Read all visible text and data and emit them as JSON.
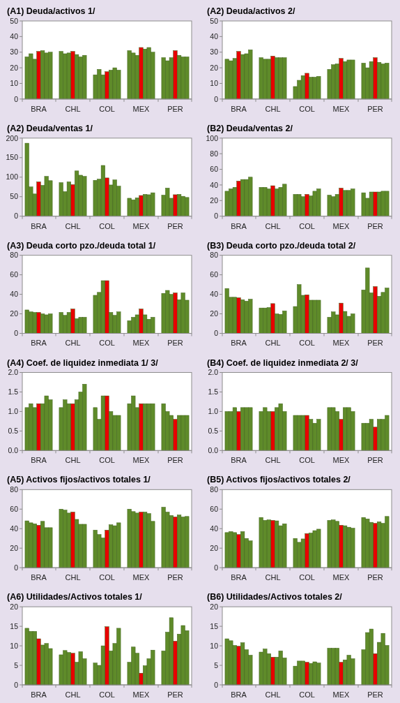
{
  "chart_data": [
    {
      "type": "bar",
      "title": "(A1) Deuda/activos  1/",
      "categories": [
        "BRA",
        "CHL",
        "COL",
        "MEX",
        "PER"
      ],
      "ylim": [
        0,
        50
      ],
      "yticks": [
        0,
        10,
        20,
        30,
        40,
        50
      ],
      "series": [
        {
          "color": "#5f8b2a",
          "values": [
            27,
            30.5,
            15.5,
            31,
            26.5
          ]
        },
        {
          "color": "#5f8b2a",
          "values": [
            29,
            29,
            19,
            29.5,
            24.5
          ]
        },
        {
          "color": "#5f8b2a",
          "values": [
            25.5,
            29.5,
            15.5,
            28,
            26.5
          ]
        },
        {
          "color": "#e80000",
          "values": [
            30.5,
            30.5,
            17.5,
            33,
            31
          ]
        },
        {
          "color": "#5f8b2a",
          "values": [
            31,
            28.5,
            18.5,
            32,
            28
          ]
        },
        {
          "color": "#5f8b2a",
          "values": [
            29.5,
            27,
            20,
            33,
            27
          ]
        },
        {
          "color": "#5f8b2a",
          "values": [
            30,
            28,
            18.5,
            30,
            27
          ]
        }
      ]
    },
    {
      "type": "bar",
      "title": "(A2) Deuda/activos  2/",
      "categories": [
        "BRA",
        "CHL",
        "COL",
        "MEX",
        "PER"
      ],
      "ylim": [
        0,
        50
      ],
      "yticks": [
        0,
        10,
        20,
        30,
        40,
        50
      ],
      "series": [
        {
          "color": "#5f8b2a",
          "values": [
            25.5,
            26.5,
            8,
            19,
            23
          ]
        },
        {
          "color": "#5f8b2a",
          "values": [
            24.5,
            25.5,
            12,
            22,
            20
          ]
        },
        {
          "color": "#5f8b2a",
          "values": [
            26,
            25.5,
            15,
            22.5,
            24
          ]
        },
        {
          "color": "#e80000",
          "values": [
            30.5,
            27.5,
            16.5,
            26,
            26.5
          ]
        },
        {
          "color": "#5f8b2a",
          "values": [
            28.5,
            26.5,
            14,
            24,
            23.5
          ]
        },
        {
          "color": "#5f8b2a",
          "values": [
            29,
            26.5,
            14,
            25,
            22.5
          ]
        },
        {
          "color": "#5f8b2a",
          "values": [
            31.5,
            26.5,
            14.5,
            25,
            23
          ]
        }
      ]
    },
    {
      "type": "bar",
      "title": "(A2) Deuda/ventas  1/",
      "categories": [
        "BRA",
        "CHL",
        "COL",
        "MEX",
        "PER"
      ],
      "ylim": [
        0,
        200
      ],
      "yticks": [
        0,
        50,
        100,
        150,
        200
      ],
      "series": [
        {
          "color": "#5f8b2a",
          "values": [
            187,
            86,
            92,
            46,
            54
          ]
        },
        {
          "color": "#5f8b2a",
          "values": [
            75,
            63,
            95,
            42,
            72
          ]
        },
        {
          "color": "#5f8b2a",
          "values": [
            57,
            88,
            130,
            47,
            46
          ]
        },
        {
          "color": "#e80000",
          "values": [
            88,
            81,
            98,
            53,
            55
          ]
        },
        {
          "color": "#5f8b2a",
          "values": [
            79,
            116,
            80,
            56,
            56
          ]
        },
        {
          "color": "#5f8b2a",
          "values": [
            102,
            105,
            93,
            55,
            51
          ]
        },
        {
          "color": "#5f8b2a",
          "values": [
            91,
            102,
            77,
            60,
            48
          ]
        }
      ]
    },
    {
      "type": "bar",
      "title": "(B2) Deuda/ventas  2/",
      "categories": [
        "BRA",
        "CHL",
        "COL",
        "MEX",
        "PER"
      ],
      "ylim": [
        0,
        100
      ],
      "yticks": [
        0,
        20,
        40,
        60,
        80,
        100
      ],
      "series": [
        {
          "color": "#5f8b2a",
          "values": [
            32,
            37,
            28,
            27,
            30
          ]
        },
        {
          "color": "#5f8b2a",
          "values": [
            35,
            37,
            28,
            25,
            23
          ]
        },
        {
          "color": "#5f8b2a",
          "values": [
            37,
            35,
            25,
            28,
            31
          ]
        },
        {
          "color": "#e80000",
          "values": [
            45,
            39,
            28,
            36,
            31
          ]
        },
        {
          "color": "#5f8b2a",
          "values": [
            47,
            35,
            26,
            33,
            31
          ]
        },
        {
          "color": "#5f8b2a",
          "values": [
            47,
            37,
            32,
            33,
            32
          ]
        },
        {
          "color": "#5f8b2a",
          "values": [
            50,
            41,
            35,
            35,
            32
          ]
        }
      ]
    },
    {
      "type": "bar",
      "title": "(A3) Deuda corto pzo./deuda  total 1/",
      "categories": [
        "BRA",
        "CHL",
        "COL",
        "MEX",
        "PER"
      ],
      "ylim": [
        0,
        80
      ],
      "yticks": [
        0,
        20,
        40,
        60,
        80
      ],
      "series": [
        {
          "color": "#5f8b2a",
          "values": [
            24,
            21.5,
            39,
            13,
            41
          ]
        },
        {
          "color": "#5f8b2a",
          "values": [
            22,
            18.5,
            42,
            16.5,
            44
          ]
        },
        {
          "color": "#5f8b2a",
          "values": [
            21.5,
            21.5,
            54,
            19,
            40
          ]
        },
        {
          "color": "#e80000",
          "values": [
            21.5,
            25,
            54,
            25,
            41.5
          ]
        },
        {
          "color": "#5f8b2a",
          "values": [
            20,
            15,
            21.5,
            19,
            34.5
          ]
        },
        {
          "color": "#5f8b2a",
          "values": [
            19,
            16.5,
            18.5,
            14.5,
            41.5
          ]
        },
        {
          "color": "#5f8b2a",
          "values": [
            20,
            16.5,
            22,
            16.5,
            34
          ]
        }
      ]
    },
    {
      "type": "bar",
      "title": "(B3) Deuda corto pzo./deuda  total 2/",
      "categories": [
        "BRA",
        "CHL",
        "COL",
        "MEX",
        "PER"
      ],
      "ylim": [
        0,
        80
      ],
      "yticks": [
        0,
        20,
        40,
        60,
        80
      ],
      "series": [
        {
          "color": "#5f8b2a",
          "values": [
            46,
            26,
            27.5,
            16.5,
            44.5
          ]
        },
        {
          "color": "#5f8b2a",
          "values": [
            37,
            26,
            50,
            22,
            67
          ]
        },
        {
          "color": "#5f8b2a",
          "values": [
            37,
            26.5,
            39,
            19,
            41.5
          ]
        },
        {
          "color": "#e80000",
          "values": [
            36.5,
            30.5,
            39.5,
            31,
            48
          ]
        },
        {
          "color": "#5f8b2a",
          "values": [
            34.5,
            20,
            34,
            22.5,
            38
          ]
        },
        {
          "color": "#5f8b2a",
          "values": [
            33,
            19.5,
            34,
            17.5,
            42
          ]
        },
        {
          "color": "#5f8b2a",
          "values": [
            35,
            23,
            34,
            20,
            46.5
          ]
        }
      ]
    },
    {
      "type": "bar",
      "title": "(A4) Coef. de liquidez inmediata 1/ 3/",
      "categories": [
        "BRA",
        "CHL",
        "COL",
        "MEX",
        "PER"
      ],
      "ylim": [
        0,
        2
      ],
      "yticks": [
        {
          "value": 0,
          "label": "0.0"
        },
        {
          "value": 0.5,
          "label": "0.5"
        },
        {
          "value": 1,
          "label": "1.0"
        },
        {
          "value": 1.5,
          "label": "1.5"
        },
        {
          "value": 2,
          "label": "2.0"
        }
      ],
      "series": [
        {
          "color": "#5f8b2a",
          "values": [
            1.1,
            1.1,
            1.1,
            1.2,
            1.2
          ]
        },
        {
          "color": "#5f8b2a",
          "values": [
            1.2,
            1.3,
            0.8,
            1.4,
            1.0
          ]
        },
        {
          "color": "#5f8b2a",
          "values": [
            1.1,
            1.2,
            1.4,
            1.1,
            0.9
          ]
        },
        {
          "color": "#e80000",
          "values": [
            1.2,
            1.2,
            1.4,
            1.2,
            0.8
          ]
        },
        {
          "color": "#5f8b2a",
          "values": [
            1.2,
            1.3,
            1.0,
            1.2,
            0.9
          ]
        },
        {
          "color": "#5f8b2a",
          "values": [
            1.4,
            1.5,
            0.9,
            1.2,
            0.9
          ]
        },
        {
          "color": "#5f8b2a",
          "values": [
            1.3,
            1.7,
            0.9,
            1.2,
            0.9
          ]
        }
      ]
    },
    {
      "type": "bar",
      "title": "(B4) Coef. de liquidez inmediata 2/ 3/",
      "categories": [
        "BRA",
        "CHL",
        "COL",
        "MEX",
        "PER"
      ],
      "ylim": [
        0,
        2
      ],
      "yticks": [
        {
          "value": 0,
          "label": "0.0"
        },
        {
          "value": 0.5,
          "label": "0.5"
        },
        {
          "value": 1,
          "label": "1.0"
        },
        {
          "value": 1.5,
          "label": "1.5"
        },
        {
          "value": 2,
          "label": "2.0"
        }
      ],
      "series": [
        {
          "color": "#5f8b2a",
          "values": [
            1.0,
            1.0,
            0.9,
            1.1,
            0.7
          ]
        },
        {
          "color": "#5f8b2a",
          "values": [
            1.0,
            1.1,
            0.9,
            1.1,
            0.7
          ]
        },
        {
          "color": "#5f8b2a",
          "values": [
            1.1,
            1.0,
            0.9,
            1.0,
            0.8
          ]
        },
        {
          "color": "#e80000",
          "values": [
            1.0,
            1.0,
            0.9,
            0.8,
            0.6
          ]
        },
        {
          "color": "#5f8b2a",
          "values": [
            1.1,
            1.1,
            0.8,
            1.1,
            0.8
          ]
        },
        {
          "color": "#5f8b2a",
          "values": [
            1.1,
            1.2,
            0.7,
            1.1,
            0.8
          ]
        },
        {
          "color": "#5f8b2a",
          "values": [
            1.1,
            1.0,
            0.8,
            1.0,
            0.9
          ]
        }
      ]
    },
    {
      "type": "bar",
      "title": "(A5) Activos fijos/activos totales 1/",
      "categories": [
        "BRA",
        "CHL",
        "COL",
        "MEX",
        "PER"
      ],
      "ylim": [
        0,
        80
      ],
      "yticks": [
        0,
        20,
        40,
        60,
        80
      ],
      "series": [
        {
          "color": "#5f8b2a",
          "values": [
            48,
            60,
            38.5,
            60,
            62
          ]
        },
        {
          "color": "#5f8b2a",
          "values": [
            46,
            59,
            34,
            57.5,
            57
          ]
        },
        {
          "color": "#5f8b2a",
          "values": [
            45,
            56,
            30.5,
            56,
            53.5
          ]
        },
        {
          "color": "#e80000",
          "values": [
            43.5,
            57,
            38.5,
            57,
            52
          ]
        },
        {
          "color": "#5f8b2a",
          "values": [
            47.5,
            49.5,
            44,
            57,
            54
          ]
        },
        {
          "color": "#5f8b2a",
          "values": [
            41,
            44.5,
            43,
            55.5,
            52
          ]
        },
        {
          "color": "#5f8b2a",
          "values": [
            41,
            44.5,
            46,
            47.5,
            52.5
          ]
        }
      ]
    },
    {
      "type": "bar",
      "title": "(B5) Activos fijos/activos totales 2/",
      "categories": [
        "BRA",
        "CHL",
        "COL",
        "MEX",
        "PER"
      ],
      "ylim": [
        0,
        80
      ],
      "yticks": [
        0,
        20,
        40,
        60,
        80
      ],
      "series": [
        {
          "color": "#5f8b2a",
          "values": [
            36,
            51.5,
            30,
            48.5,
            51.5
          ]
        },
        {
          "color": "#5f8b2a",
          "values": [
            37,
            48.5,
            26,
            49,
            50
          ]
        },
        {
          "color": "#5f8b2a",
          "values": [
            36,
            49,
            29.5,
            47.5,
            46.5
          ]
        },
        {
          "color": "#e80000",
          "values": [
            34,
            48.5,
            35,
            43.5,
            45.5
          ]
        },
        {
          "color": "#5f8b2a",
          "values": [
            37,
            48,
            35.5,
            43,
            47
          ]
        },
        {
          "color": "#5f8b2a",
          "values": [
            30,
            43,
            38,
            41.5,
            45.5
          ]
        },
        {
          "color": "#5f8b2a",
          "values": [
            27.5,
            45,
            39.5,
            40.5,
            52.5
          ]
        }
      ]
    },
    {
      "type": "bar",
      "title": "(A6) Utilidades/Activos  totales 1/",
      "categories": [
        "BRA",
        "CHL",
        "COL",
        "MEX",
        "PER"
      ],
      "ylim": [
        0,
        20
      ],
      "yticks": [
        0,
        5,
        10,
        15,
        20
      ],
      "series": [
        {
          "color": "#5f8b2a",
          "values": [
            14.5,
            7.7,
            5.6,
            5.8,
            8.7
          ]
        },
        {
          "color": "#5f8b2a",
          "values": [
            13.7,
            8.8,
            5,
            9.7,
            13.5
          ]
        },
        {
          "color": "#5f8b2a",
          "values": [
            13.7,
            8.3,
            10,
            8.1,
            17.2
          ]
        },
        {
          "color": "#e80000",
          "values": [
            11.8,
            8.1,
            14.9,
            3,
            11.2
          ]
        },
        {
          "color": "#5f8b2a",
          "values": [
            10.2,
            5.8,
            8.7,
            4.9,
            13
          ]
        },
        {
          "color": "#5f8b2a",
          "values": [
            10.6,
            8.5,
            10.6,
            6.7,
            15.2
          ]
        },
        {
          "color": "#5f8b2a",
          "values": [
            9.3,
            6.7,
            14.5,
            8.9,
            13.9
          ]
        }
      ]
    },
    {
      "type": "bar",
      "title": "(B6) Utilidades/Activos  totales 2/",
      "categories": [
        "BRA",
        "CHL",
        "COL",
        "MEX",
        "PER"
      ],
      "ylim": [
        0,
        20
      ],
      "yticks": [
        0,
        5,
        10,
        15,
        20
      ],
      "series": [
        {
          "color": "#5f8b2a",
          "values": [
            11.8,
            8.4,
            4.8,
            9.4,
            9
          ]
        },
        {
          "color": "#5f8b2a",
          "values": [
            11.3,
            9.2,
            6.1,
            9.4,
            13.4
          ]
        },
        {
          "color": "#5f8b2a",
          "values": [
            10.1,
            8,
            6.1,
            9.4,
            14.3
          ]
        },
        {
          "color": "#e80000",
          "values": [
            9.9,
            7.1,
            5.8,
            5.8,
            8
          ]
        },
        {
          "color": "#5f8b2a",
          "values": [
            10.8,
            7.1,
            5.5,
            6.4,
            10.9
          ]
        },
        {
          "color": "#5f8b2a",
          "values": [
            9,
            8.7,
            5.9,
            7.6,
            13.2
          ]
        },
        {
          "color": "#5f8b2a",
          "values": [
            7.6,
            6.9,
            5.6,
            6.7,
            10.1
          ]
        }
      ]
    }
  ]
}
